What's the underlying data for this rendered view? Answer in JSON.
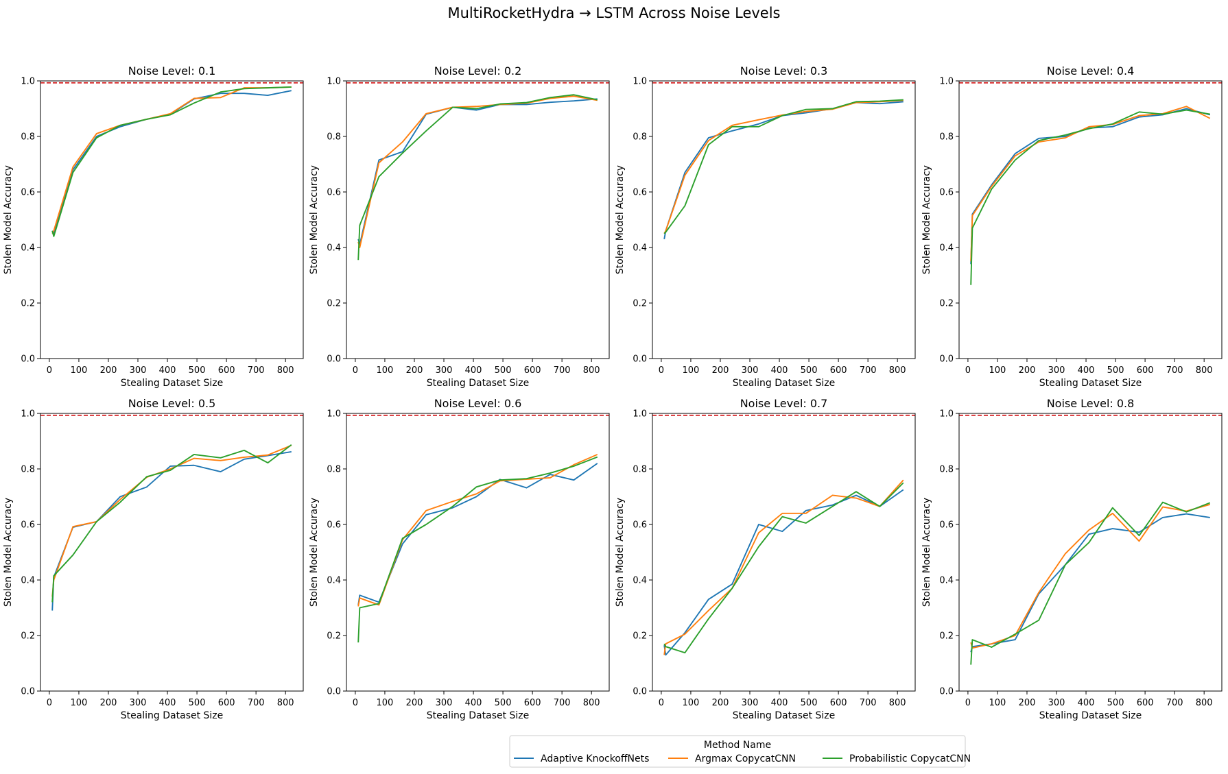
{
  "figure": {
    "title": "MultiRocketHydra → LSTM Across Noise Levels",
    "xlabel": "Stealing Dataset Size",
    "ylabel": "Stolen Model Accuracy",
    "legend_title": "Method Name",
    "legend_placement": "bottom-center",
    "reference_line": {
      "y": 0.993,
      "color": "#d62728",
      "style": "dashed"
    }
  },
  "colors": {
    "Adaptive KnockoffNets": "#1f77b4",
    "Argmax CopycatCNN": "#ff7f0e",
    "Probabilistic CopycatCNN": "#2ca02c"
  },
  "chart_data": [
    {
      "type": "line",
      "title": "Noise Level: 0.1",
      "xlabel": "Stealing Dataset Size",
      "ylabel": "Stolen Model Accuracy",
      "xlim": [
        -30,
        860
      ],
      "ylim": [
        0,
        1
      ],
      "xticks": [
        0,
        100,
        200,
        300,
        400,
        500,
        600,
        700,
        800
      ],
      "yticks": [
        0.0,
        0.2,
        0.4,
        0.6,
        0.8,
        1.0
      ],
      "series": [
        {
          "name": "Adaptive KnockoffNets",
          "x": [
            10,
            15,
            80,
            160,
            240,
            330,
            410,
            490,
            580,
            660,
            740,
            820
          ],
          "y": [
            0.46,
            0.45,
            0.68,
            0.8,
            0.835,
            0.862,
            0.88,
            0.935,
            0.955,
            0.955,
            0.948,
            0.965
          ]
        },
        {
          "name": "Argmax CopycatCNN",
          "x": [
            10,
            15,
            80,
            160,
            240,
            330,
            410,
            490,
            580,
            660,
            740,
            820
          ],
          "y": [
            0.45,
            0.46,
            0.69,
            0.81,
            0.84,
            0.862,
            0.882,
            0.937,
            0.94,
            0.975,
            0.975,
            0.978
          ]
        },
        {
          "name": "Probabilistic CopycatCNN",
          "x": [
            10,
            15,
            80,
            160,
            240,
            330,
            410,
            490,
            580,
            660,
            740,
            820
          ],
          "y": [
            0.46,
            0.44,
            0.67,
            0.795,
            0.84,
            0.862,
            0.878,
            0.92,
            0.96,
            0.972,
            0.975,
            0.978
          ]
        }
      ]
    },
    {
      "type": "line",
      "title": "Noise Level: 0.2",
      "xlabel": "Stealing Dataset Size",
      "ylabel": "Stolen Model Accuracy",
      "xlim": [
        -30,
        860
      ],
      "ylim": [
        0,
        1
      ],
      "xticks": [
        0,
        100,
        200,
        300,
        400,
        500,
        600,
        700,
        800
      ],
      "yticks": [
        0.0,
        0.2,
        0.4,
        0.6,
        0.8,
        1.0
      ],
      "series": [
        {
          "name": "Adaptive KnockoffNets",
          "x": [
            10,
            15,
            80,
            160,
            240,
            330,
            410,
            490,
            580,
            660,
            740,
            820
          ],
          "y": [
            0.43,
            0.41,
            0.715,
            0.745,
            0.88,
            0.905,
            0.895,
            0.915,
            0.915,
            0.923,
            0.928,
            0.935
          ]
        },
        {
          "name": "Argmax CopycatCNN",
          "x": [
            10,
            15,
            80,
            160,
            240,
            330,
            410,
            490,
            580,
            660,
            740,
            820
          ],
          "y": [
            0.42,
            0.4,
            0.705,
            0.78,
            0.882,
            0.905,
            0.908,
            0.915,
            0.92,
            0.937,
            0.945,
            0.93
          ]
        },
        {
          "name": "Probabilistic CopycatCNN",
          "x": [
            10,
            15,
            80,
            160,
            240,
            330,
            410,
            490,
            580,
            660,
            740,
            820
          ],
          "y": [
            0.355,
            0.48,
            0.655,
            0.74,
            0.82,
            0.905,
            0.9,
            0.917,
            0.922,
            0.94,
            0.95,
            0.932
          ]
        }
      ]
    },
    {
      "type": "line",
      "title": "Noise Level: 0.3",
      "xlabel": "Stealing Dataset Size",
      "ylabel": "Stolen Model Accuracy",
      "xlim": [
        -30,
        860
      ],
      "ylim": [
        0,
        1
      ],
      "xticks": [
        0,
        100,
        200,
        300,
        400,
        500,
        600,
        700,
        800
      ],
      "yticks": [
        0.0,
        0.2,
        0.4,
        0.6,
        0.8,
        1.0
      ],
      "series": [
        {
          "name": "Adaptive KnockoffNets",
          "x": [
            10,
            15,
            80,
            160,
            240,
            330,
            410,
            490,
            580,
            660,
            740,
            820
          ],
          "y": [
            0.43,
            0.46,
            0.67,
            0.795,
            0.82,
            0.845,
            0.875,
            0.885,
            0.9,
            0.922,
            0.918,
            0.925
          ]
        },
        {
          "name": "Argmax CopycatCNN",
          "x": [
            10,
            15,
            80,
            160,
            240,
            330,
            410,
            490,
            580,
            660,
            740,
            820
          ],
          "y": [
            0.45,
            0.46,
            0.66,
            0.785,
            0.84,
            0.86,
            0.877,
            0.89,
            0.898,
            0.922,
            0.925,
            0.93
          ]
        },
        {
          "name": "Probabilistic CopycatCNN",
          "x": [
            10,
            15,
            80,
            160,
            240,
            330,
            410,
            490,
            580,
            660,
            740,
            820
          ],
          "y": [
            0.45,
            0.455,
            0.55,
            0.77,
            0.835,
            0.835,
            0.875,
            0.897,
            0.9,
            0.925,
            0.927,
            0.932
          ]
        }
      ]
    },
    {
      "type": "line",
      "title": "Noise Level: 0.4",
      "xlabel": "Stealing Dataset Size",
      "ylabel": "Stolen Model Accuracy",
      "xlim": [
        -30,
        860
      ],
      "ylim": [
        0,
        1
      ],
      "xticks": [
        0,
        100,
        200,
        300,
        400,
        500,
        600,
        700,
        800
      ],
      "yticks": [
        0.0,
        0.2,
        0.4,
        0.6,
        0.8,
        1.0
      ],
      "series": [
        {
          "name": "Adaptive KnockoffNets",
          "x": [
            10,
            15,
            80,
            160,
            240,
            330,
            410,
            490,
            580,
            660,
            740,
            820
          ],
          "y": [
            0.34,
            0.52,
            0.625,
            0.738,
            0.793,
            0.8,
            0.83,
            0.835,
            0.87,
            0.878,
            0.9,
            0.878
          ]
        },
        {
          "name": "Argmax CopycatCNN",
          "x": [
            10,
            15,
            80,
            160,
            240,
            330,
            410,
            490,
            580,
            660,
            740,
            820
          ],
          "y": [
            0.35,
            0.515,
            0.62,
            0.73,
            0.78,
            0.795,
            0.835,
            0.843,
            0.875,
            0.882,
            0.908,
            0.865
          ]
        },
        {
          "name": "Probabilistic CopycatCNN",
          "x": [
            10,
            15,
            80,
            160,
            240,
            330,
            410,
            490,
            580,
            660,
            740,
            820
          ],
          "y": [
            0.265,
            0.47,
            0.61,
            0.715,
            0.785,
            0.805,
            0.828,
            0.845,
            0.888,
            0.88,
            0.895,
            0.88
          ]
        }
      ]
    },
    {
      "type": "line",
      "title": "Noise Level: 0.5",
      "xlabel": "Stealing Dataset Size",
      "ylabel": "Stolen Model Accuracy",
      "xlim": [
        -30,
        860
      ],
      "ylim": [
        0,
        1
      ],
      "xticks": [
        0,
        100,
        200,
        300,
        400,
        500,
        600,
        700,
        800
      ],
      "yticks": [
        0.0,
        0.2,
        0.4,
        0.6,
        0.8,
        1.0
      ],
      "series": [
        {
          "name": "Adaptive KnockoffNets",
          "x": [
            10,
            15,
            80,
            160,
            240,
            330,
            410,
            490,
            580,
            660,
            740,
            820
          ],
          "y": [
            0.29,
            0.41,
            0.59,
            0.61,
            0.7,
            0.735,
            0.81,
            0.813,
            0.79,
            0.835,
            0.848,
            0.862
          ]
        },
        {
          "name": "Argmax CopycatCNN",
          "x": [
            10,
            15,
            80,
            160,
            240,
            330,
            410,
            490,
            580,
            660,
            740,
            820
          ],
          "y": [
            0.34,
            0.4,
            0.592,
            0.61,
            0.69,
            0.77,
            0.8,
            0.838,
            0.83,
            0.842,
            0.85,
            0.885
          ]
        },
        {
          "name": "Probabilistic CopycatCNN",
          "x": [
            10,
            15,
            80,
            160,
            240,
            330,
            410,
            490,
            580,
            660,
            740,
            820
          ],
          "y": [
            0.32,
            0.415,
            0.49,
            0.61,
            0.68,
            0.772,
            0.795,
            0.852,
            0.84,
            0.867,
            0.822,
            0.887
          ]
        }
      ]
    },
    {
      "type": "line",
      "title": "Noise Level: 0.6",
      "xlabel": "Stealing Dataset Size",
      "ylabel": "Stolen Model Accuracy",
      "xlim": [
        -30,
        860
      ],
      "ylim": [
        0,
        1
      ],
      "xticks": [
        0,
        100,
        200,
        300,
        400,
        500,
        600,
        700,
        800
      ],
      "yticks": [
        0.0,
        0.2,
        0.4,
        0.6,
        0.8,
        1.0
      ],
      "series": [
        {
          "name": "Adaptive KnockoffNets",
          "x": [
            10,
            15,
            80,
            160,
            240,
            330,
            410,
            490,
            580,
            660,
            740,
            820
          ],
          "y": [
            0.31,
            0.345,
            0.32,
            0.53,
            0.635,
            0.66,
            0.7,
            0.762,
            0.732,
            0.78,
            0.76,
            0.82
          ]
        },
        {
          "name": "Argmax CopycatCNN",
          "x": [
            10,
            15,
            80,
            160,
            240,
            330,
            410,
            490,
            580,
            660,
            740,
            820
          ],
          "y": [
            0.305,
            0.335,
            0.31,
            0.545,
            0.65,
            0.683,
            0.71,
            0.757,
            0.763,
            0.768,
            0.815,
            0.852
          ]
        },
        {
          "name": "Probabilistic CopycatCNN",
          "x": [
            10,
            15,
            80,
            160,
            240,
            330,
            410,
            490,
            580,
            660,
            740,
            820
          ],
          "y": [
            0.175,
            0.3,
            0.315,
            0.55,
            0.6,
            0.665,
            0.735,
            0.76,
            0.765,
            0.785,
            0.81,
            0.843
          ]
        }
      ]
    },
    {
      "type": "line",
      "title": "Noise Level: 0.7",
      "xlabel": "Stealing Dataset Size",
      "ylabel": "Stolen Model Accuracy",
      "xlim": [
        -30,
        860
      ],
      "ylim": [
        0,
        1
      ],
      "xticks": [
        0,
        100,
        200,
        300,
        400,
        500,
        600,
        700,
        800
      ],
      "yticks": [
        0.0,
        0.2,
        0.4,
        0.6,
        0.8,
        1.0
      ],
      "series": [
        {
          "name": "Adaptive KnockoffNets",
          "x": [
            10,
            15,
            80,
            160,
            240,
            330,
            410,
            490,
            580,
            660,
            740,
            820
          ],
          "y": [
            0.165,
            0.13,
            0.21,
            0.33,
            0.385,
            0.6,
            0.575,
            0.65,
            0.67,
            0.705,
            0.665,
            0.725
          ]
        },
        {
          "name": "Argmax CopycatCNN",
          "x": [
            10,
            15,
            80,
            160,
            240,
            330,
            410,
            490,
            580,
            660,
            740,
            820
          ],
          "y": [
            0.13,
            0.17,
            0.205,
            0.29,
            0.37,
            0.57,
            0.64,
            0.64,
            0.705,
            0.695,
            0.665,
            0.76
          ]
        },
        {
          "name": "Probabilistic CopycatCNN",
          "x": [
            10,
            15,
            80,
            160,
            240,
            330,
            410,
            490,
            580,
            660,
            740,
            820
          ],
          "y": [
            0.17,
            0.16,
            0.138,
            0.26,
            0.37,
            0.52,
            0.628,
            0.605,
            0.665,
            0.718,
            0.665,
            0.75
          ]
        }
      ]
    },
    {
      "type": "line",
      "title": "Noise Level: 0.8",
      "xlabel": "Stealing Dataset Size",
      "ylabel": "Stolen Model Accuracy",
      "xlim": [
        -30,
        860
      ],
      "ylim": [
        0,
        1
      ],
      "xticks": [
        0,
        100,
        200,
        300,
        400,
        500,
        600,
        700,
        800
      ],
      "yticks": [
        0.0,
        0.2,
        0.4,
        0.6,
        0.8,
        1.0
      ],
      "series": [
        {
          "name": "Adaptive KnockoffNets",
          "x": [
            10,
            15,
            80,
            160,
            240,
            330,
            410,
            490,
            580,
            660,
            740,
            820
          ],
          "y": [
            0.14,
            0.16,
            0.17,
            0.185,
            0.35,
            0.455,
            0.565,
            0.585,
            0.572,
            0.625,
            0.638,
            0.625
          ]
        },
        {
          "name": "Argmax CopycatCNN",
          "x": [
            10,
            15,
            80,
            160,
            240,
            330,
            410,
            490,
            580,
            660,
            740,
            820
          ],
          "y": [
            0.175,
            0.155,
            0.17,
            0.2,
            0.355,
            0.495,
            0.58,
            0.64,
            0.54,
            0.663,
            0.648,
            0.672
          ]
        },
        {
          "name": "Probabilistic CopycatCNN",
          "x": [
            10,
            15,
            80,
            160,
            240,
            330,
            410,
            490,
            580,
            660,
            740,
            820
          ],
          "y": [
            0.095,
            0.185,
            0.158,
            0.205,
            0.255,
            0.455,
            0.535,
            0.66,
            0.56,
            0.68,
            0.645,
            0.678
          ]
        }
      ]
    }
  ]
}
